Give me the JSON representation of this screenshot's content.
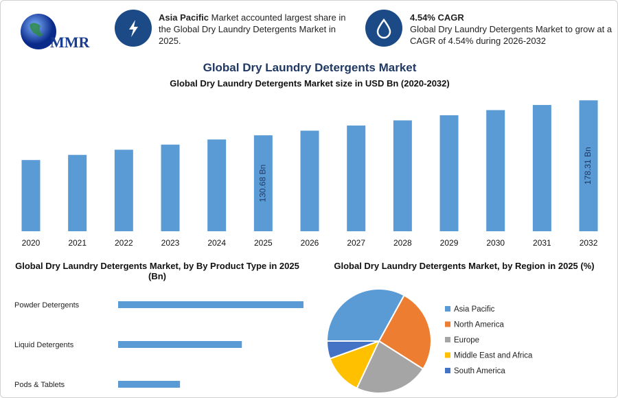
{
  "header": {
    "logo": "MMR",
    "title": "Global Dry Laundry Detergents Market",
    "info_left": {
      "highlight": "Asia Pacific",
      "text": "Market accounted largest share in the Global Dry Laundry Detergents Market in 2025."
    },
    "info_right": {
      "highlight": "4.54% CAGR",
      "text": "Global Dry Laundry Detergents Market to grow at a CAGR of 4.54% during 2026-2032"
    }
  },
  "chart_data": [
    {
      "type": "bar",
      "title": "Global Dry Laundry Detergents Market size in USD Bn (2020-2032)",
      "categories": [
        "2020",
        "2021",
        "2022",
        "2023",
        "2024",
        "2025",
        "2026",
        "2027",
        "2028",
        "2029",
        "2030",
        "2031",
        "2032"
      ],
      "values": [
        97,
        104,
        111,
        118,
        125,
        130.68,
        137,
        144,
        151,
        158,
        165,
        172,
        178.31
      ],
      "value_labels": [
        null,
        null,
        null,
        null,
        null,
        "130.68 Bn",
        null,
        null,
        null,
        null,
        null,
        null,
        "178.31 Bn"
      ],
      "color": "#5b9bd5",
      "ylim": [
        0,
        180
      ]
    },
    {
      "type": "hbar",
      "title": "Global Dry Laundry Detergents Market, by By Product Type in 2025 (Bn)",
      "categories": [
        "Powder Detergents",
        "Liquid Detergents",
        "Pods & Tablets"
      ],
      "values": [
        65.3,
        43.6,
        21.8
      ],
      "color": "#5b9bd5",
      "xlim": [
        0,
        70
      ]
    },
    {
      "type": "pie",
      "title": "Global Dry Laundry Detergents Market, by Region in 2025 (%)",
      "categories": [
        "Asia Pacific",
        "North America",
        "Europe",
        "Middle East and Africa",
        "South America"
      ],
      "values": [
        33,
        26,
        23,
        12.5,
        5.5
      ],
      "colors": [
        "#5b9bd5",
        "#ed7d31",
        "#a5a5a5",
        "#ffc000",
        "#4472c4"
      ],
      "legend": "right"
    }
  ]
}
